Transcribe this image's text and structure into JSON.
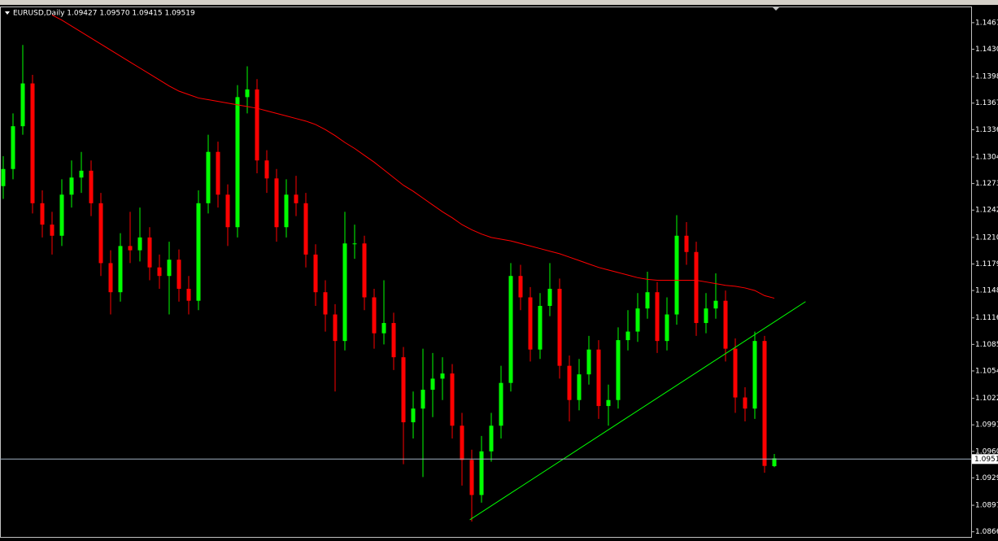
{
  "chart_data": {
    "type": "candlestick",
    "title": "EURUSD,Daily  1.09427 1.09570 1.09415 1.09519",
    "up_color": "#00ff00",
    "down_color": "#ff0000",
    "open": [
      1.127,
      1.129,
      1.134,
      1.139,
      1.125,
      1.1225,
      1.1212,
      1.126,
      1.128,
      1.1288,
      1.125,
      1.118,
      1.1146,
      1.12,
      1.1195,
      1.121,
      1.1175,
      1.1165,
      1.1184,
      1.115,
      1.1136,
      1.125,
      1.131,
      1.126,
      1.1222,
      1.1374,
      1.1383,
      1.13,
      1.1279,
      1.1222,
      1.126,
      1.125,
      1.119,
      1.1146,
      1.112,
      1.1089,
      1.1203,
      1.1203,
      1.114,
      1.1098,
      1.111,
      1.107,
      1.0994,
      1.101,
      1.1032,
      1.1045,
      1.1051,
      1.099,
      1.095,
      1.0909,
      1.096,
      1.099,
      1.104,
      1.1165,
      1.114,
      1.1079,
      1.113,
      1.115,
      1.106,
      1.102,
      1.105,
      1.1079,
      1.1013,
      1.102,
      1.109,
      1.11,
      1.1127,
      1.1146,
      1.1089,
      1.112,
      1.1212,
      1.1193,
      1.111,
      1.1127,
      1.1136,
      1.108,
      1.1023,
      1.101,
      1.1089,
      1.09427
    ],
    "high": [
      1.1305,
      1.1355,
      1.1435,
      1.14,
      1.1265,
      1.124,
      1.1278,
      1.13,
      1.131,
      1.13,
      1.1262,
      1.1195,
      1.1215,
      1.124,
      1.1245,
      1.1222,
      1.119,
      1.1205,
      1.1196,
      1.1165,
      1.1265,
      1.133,
      1.1322,
      1.1272,
      1.1388,
      1.141,
      1.1395,
      1.1312,
      1.129,
      1.1278,
      1.1282,
      1.1262,
      1.1202,
      1.116,
      1.1132,
      1.124,
      1.1225,
      1.1212,
      1.115,
      1.116,
      1.1122,
      1.1082,
      1.103,
      1.108,
      1.1075,
      1.107,
      1.1062,
      1.1005,
      1.0962,
      1.0978,
      1.1005,
      1.106,
      1.118,
      1.1178,
      1.1152,
      1.1145,
      1.118,
      1.1162,
      1.1072,
      1.1068,
      1.1095,
      1.109,
      1.1038,
      1.1105,
      1.1125,
      1.1145,
      1.117,
      1.1158,
      1.114,
      1.1236,
      1.1228,
      1.1205,
      1.1145,
      1.1168,
      1.1148,
      1.1092,
      1.1035,
      1.11,
      1.1095,
      1.0957
    ],
    "low": [
      1.1255,
      1.1278,
      1.133,
      1.1238,
      1.121,
      1.119,
      1.12,
      1.1245,
      1.1262,
      1.1235,
      1.1165,
      1.112,
      1.1135,
      1.118,
      1.1182,
      1.116,
      1.115,
      1.112,
      1.1135,
      1.112,
      1.1125,
      1.1238,
      1.1245,
      1.12,
      1.121,
      1.1355,
      1.1285,
      1.1262,
      1.1205,
      1.121,
      1.1235,
      1.1175,
      1.113,
      1.11,
      1.103,
      1.1078,
      1.1185,
      1.1125,
      1.108,
      1.1085,
      1.1055,
      1.0945,
      1.0975,
      1.093,
      1.1,
      1.102,
      1.0975,
      1.092,
      1.0878,
      1.09,
      1.0948,
      1.0975,
      1.103,
      1.1125,
      1.1065,
      1.1068,
      1.1118,
      1.1045,
      1.0995,
      1.1008,
      1.1038,
      1.0998,
      1.099,
      1.101,
      1.1078,
      1.1088,
      1.1115,
      1.1075,
      1.1078,
      1.1108,
      1.1178,
      1.1095,
      1.1098,
      1.1115,
      1.1065,
      1.1005,
      1.0995,
      1.0998,
      1.0935,
      1.09415
    ],
    "close": [
      1.129,
      1.134,
      1.139,
      1.125,
      1.1225,
      1.1212,
      1.126,
      1.128,
      1.1288,
      1.125,
      1.118,
      1.1146,
      1.12,
      1.1195,
      1.121,
      1.1175,
      1.1165,
      1.1184,
      1.115,
      1.1136,
      1.125,
      1.131,
      1.126,
      1.1222,
      1.1374,
      1.1383,
      1.13,
      1.1279,
      1.1222,
      1.126,
      1.125,
      1.119,
      1.1146,
      1.112,
      1.1089,
      1.1203,
      1.1203,
      1.114,
      1.1098,
      1.111,
      1.107,
      1.0994,
      1.101,
      1.1032,
      1.1045,
      1.1051,
      1.099,
      1.095,
      1.0909,
      1.096,
      1.099,
      1.104,
      1.1165,
      1.114,
      1.1079,
      1.113,
      1.115,
      1.106,
      1.102,
      1.105,
      1.1079,
      1.1013,
      1.102,
      1.109,
      1.11,
      1.1127,
      1.1146,
      1.1089,
      1.112,
      1.1212,
      1.1193,
      1.111,
      1.1127,
      1.1136,
      1.108,
      1.1023,
      1.101,
      1.1089,
      1.0943,
      1.09519
    ],
    "moving_average": {
      "color": "#ff0000",
      "values": [
        null,
        null,
        null,
        null,
        null,
        1.147,
        1.1464,
        1.1457,
        1.145,
        1.1443,
        1.1436,
        1.1429,
        1.1422,
        1.1415,
        1.1408,
        1.1401,
        1.1394,
        1.1387,
        1.1381,
        1.1377,
        1.1373,
        1.1371,
        1.1369,
        1.1367,
        1.1365,
        1.1363,
        1.1361,
        1.1358,
        1.1355,
        1.1352,
        1.1349,
        1.1346,
        1.1342,
        1.1336,
        1.1329,
        1.1321,
        1.1314,
        1.1306,
        1.1298,
        1.1289,
        1.128,
        1.1271,
        1.1264,
        1.1256,
        1.1248,
        1.124,
        1.1233,
        1.1225,
        1.1219,
        1.1214,
        1.121,
        1.1208,
        1.1206,
        1.1203,
        1.12,
        1.1197,
        1.1194,
        1.1191,
        1.1187,
        1.1183,
        1.1179,
        1.1175,
        1.1172,
        1.1169,
        1.1166,
        1.1163,
        1.1161,
        1.116,
        1.116,
        1.116,
        1.116,
        1.116,
        1.1158,
        1.1156,
        1.1154,
        1.1153,
        1.1151,
        1.1148,
        1.1142,
        1.1139
      ]
    },
    "trendline": {
      "color": "#00ff00",
      "x": [
        47.8,
        82.2
      ],
      "y": [
        1.088,
        1.1135
      ]
    },
    "bid_line": 1.0951,
    "ylim": [
      1.086,
      1.1478
    ],
    "yticks": [
      1.1461,
      {
        "value": 1.143,
        "label": "1.1430"
      },
      1.1398,
      1.1367,
      1.1336,
      1.1304,
      1.1273,
      1.1242,
      {
        "value": 1.121,
        "label": "1.1210"
      },
      1.1179,
      1.1148,
      1.1116,
      1.1085,
      1.1054,
      1.1022,
      1.0991,
      {
        "value": 1.096,
        "label": "1.0960"
      },
      1.0929,
      1.0897,
      1.0866
    ]
  }
}
